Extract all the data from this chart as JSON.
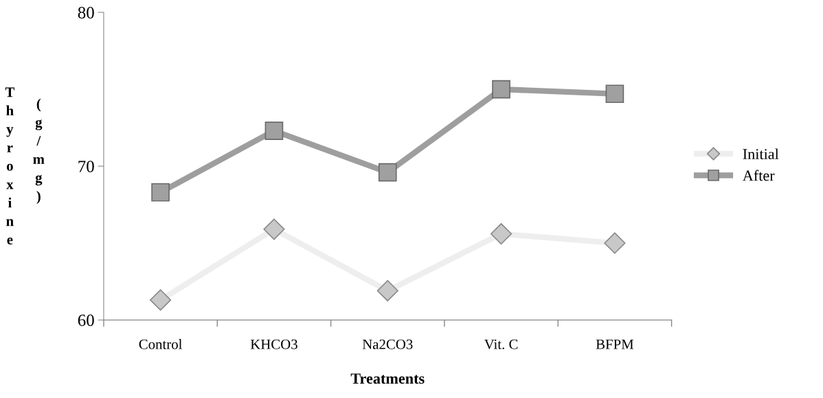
{
  "chart_data": {
    "type": "line",
    "xlabel": "Treatments",
    "ylabel": "Thyroxine (g/mg)",
    "categories": [
      "Control",
      "KHCO3",
      "Na2CO3",
      "Vit. C",
      "BFPM"
    ],
    "series": [
      {
        "name": "Initial",
        "color": "#eeeeee",
        "marker": "diamond",
        "values": [
          61.3,
          65.9,
          61.9,
          65.6,
          65.0
        ]
      },
      {
        "name": "After",
        "color": "#9e9e9e",
        "marker": "square",
        "values": [
          68.3,
          72.3,
          69.6,
          75.0,
          74.7
        ]
      }
    ],
    "ylim": [
      60,
      80
    ],
    "yticks": [
      60,
      70,
      80
    ],
    "grid": false,
    "legend": "right"
  }
}
